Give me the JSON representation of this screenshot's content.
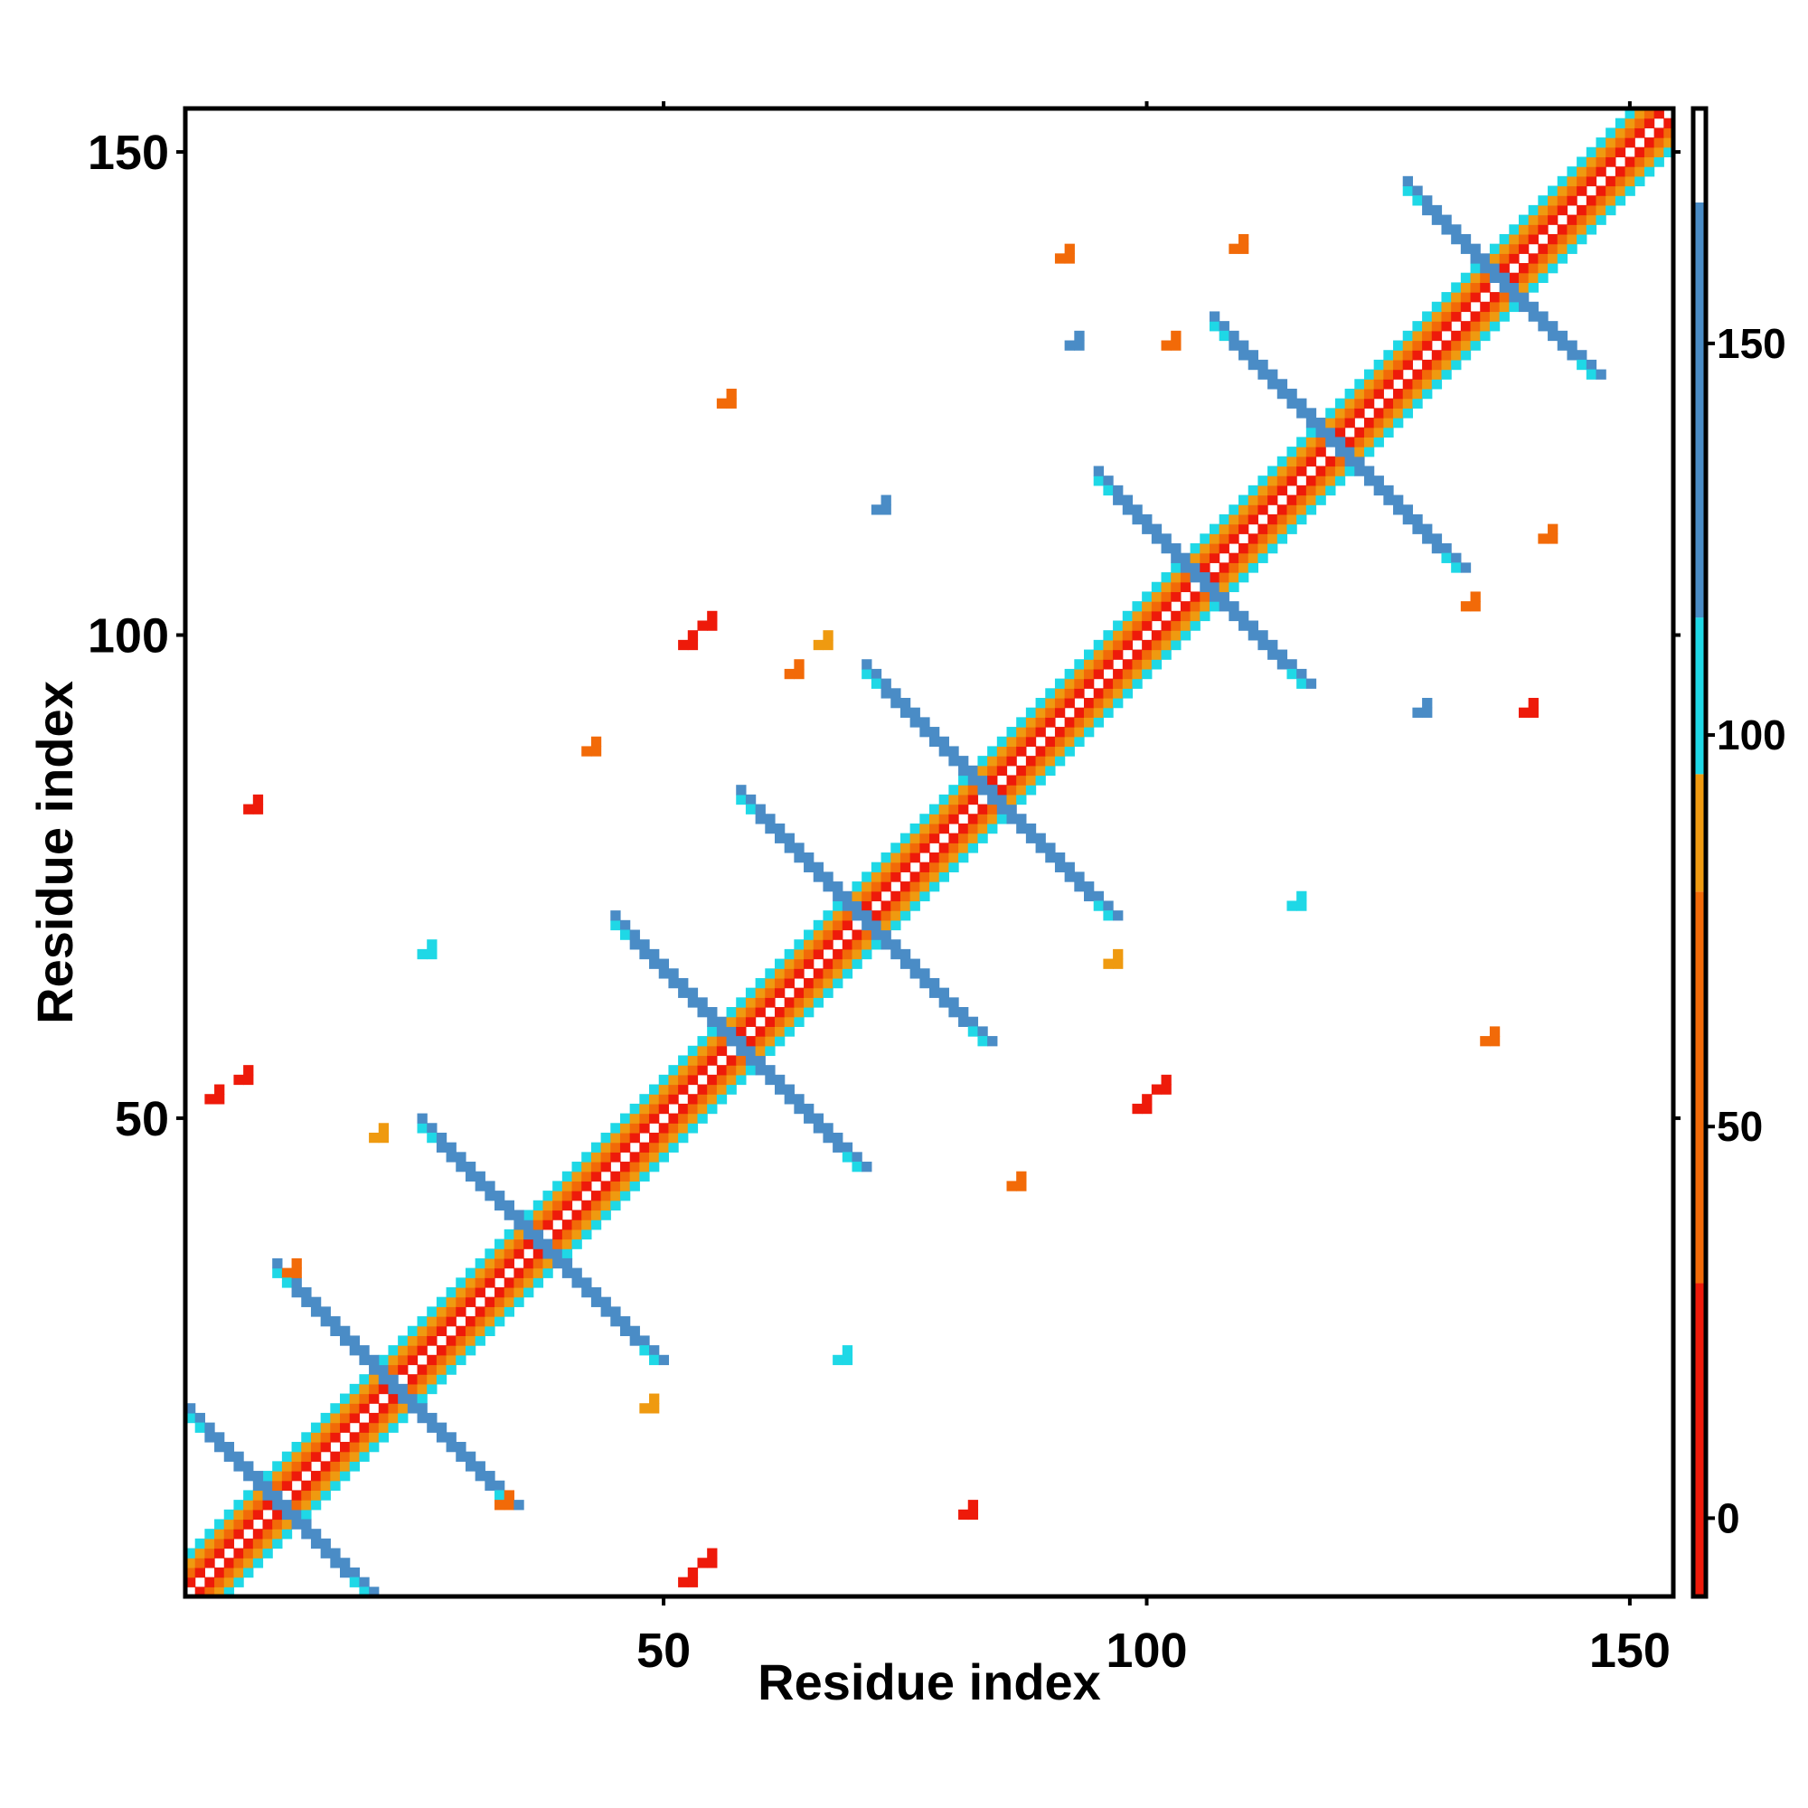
{
  "chart_data": {
    "type": "heatmap",
    "title": "",
    "xlabel": "Residue index",
    "ylabel": "Residue index",
    "xlim": [
      1,
      154
    ],
    "ylim": [
      1,
      154
    ],
    "x_ticks": [
      "50",
      "100",
      "150"
    ],
    "y_ticks": [
      "50",
      "100",
      "150"
    ],
    "colorbar": {
      "range": [
        -10,
        180
      ],
      "ticks": [
        "0",
        "50",
        "100",
        "150"
      ],
      "bins": [
        {
          "from": -10,
          "to": 30,
          "color": "#ee1a0a"
        },
        {
          "from": 30,
          "to": 80,
          "color": "#f26a08"
        },
        {
          "from": 80,
          "to": 95,
          "color": "#ef9a10"
        },
        {
          "from": 95,
          "to": 115,
          "color": "#1fd8e6"
        },
        {
          "from": 115,
          "to": 168,
          "color": "#4a8cc6"
        },
        {
          "from": 168,
          "to": 180,
          "color": "#ffffff"
        }
      ]
    },
    "diagonal_band": {
      "from": 1,
      "to": 154,
      "values": [
        5,
        45,
        88,
        100
      ]
    },
    "antidiagonal_segments": [
      {
        "start": [
          1,
          19
        ],
        "end": [
          19,
          1
        ],
        "value": 140
      },
      {
        "start": [
          10,
          34
        ],
        "end": [
          34,
          10
        ],
        "value": 140
      },
      {
        "start": [
          25,
          49
        ],
        "end": [
          49,
          25
        ],
        "value": 140
      },
      {
        "start": [
          45,
          70
        ],
        "end": [
          70,
          45
        ],
        "value": 140
      },
      {
        "start": [
          58,
          83
        ],
        "end": [
          83,
          58
        ],
        "value": 140
      },
      {
        "start": [
          71,
          96
        ],
        "end": [
          96,
          71
        ],
        "value": 140
      },
      {
        "start": [
          95,
          116
        ],
        "end": [
          116,
          95
        ],
        "value": 140
      },
      {
        "start": [
          107,
          132
        ],
        "end": [
          132,
          107
        ],
        "value": 140
      },
      {
        "start": [
          127,
          146
        ],
        "end": [
          146,
          127
        ],
        "value": 140
      }
    ],
    "off_diagonal_patches": [
      {
        "x": 3,
        "y": 52,
        "value": 10
      },
      {
        "x": 6,
        "y": 54,
        "value": 20
      },
      {
        "x": 52,
        "y": 2,
        "value": 10
      },
      {
        "x": 54,
        "y": 4,
        "value": 20
      },
      {
        "x": 52,
        "y": 99,
        "value": 10
      },
      {
        "x": 54,
        "y": 101,
        "value": 20
      },
      {
        "x": 99,
        "y": 51,
        "value": 10
      },
      {
        "x": 101,
        "y": 53,
        "value": 20
      },
      {
        "x": 42,
        "y": 88,
        "value": 35
      },
      {
        "x": 86,
        "y": 43,
        "value": 35
      },
      {
        "x": 91,
        "y": 139,
        "value": 40
      },
      {
        "x": 139,
        "y": 92,
        "value": 20
      },
      {
        "x": 109,
        "y": 140,
        "value": 60
      },
      {
        "x": 102,
        "y": 130,
        "value": 60
      },
      {
        "x": 133,
        "y": 103,
        "value": 60
      },
      {
        "x": 141,
        "y": 110,
        "value": 60
      },
      {
        "x": 11,
        "y": 34,
        "value": 60
      },
      {
        "x": 33,
        "y": 10,
        "value": 60
      },
      {
        "x": 48,
        "y": 20,
        "value": 85
      },
      {
        "x": 20,
        "y": 48,
        "value": 85
      },
      {
        "x": 66,
        "y": 99,
        "value": 85
      },
      {
        "x": 96,
        "y": 66,
        "value": 85
      },
      {
        "x": 7,
        "y": 82,
        "value": 5
      },
      {
        "x": 81,
        "y": 9,
        "value": 5
      },
      {
        "x": 63,
        "y": 96,
        "value": 60
      },
      {
        "x": 56,
        "y": 124,
        "value": 60
      },
      {
        "x": 135,
        "y": 58,
        "value": 60
      },
      {
        "x": 92,
        "y": 130,
        "value": 140
      },
      {
        "x": 128,
        "y": 92,
        "value": 140
      },
      {
        "x": 72,
        "y": 113,
        "value": 140
      },
      {
        "x": 115,
        "y": 72,
        "value": 100
      },
      {
        "x": 25,
        "y": 67,
        "value": 100
      },
      {
        "x": 68,
        "y": 25,
        "value": 100
      }
    ]
  }
}
